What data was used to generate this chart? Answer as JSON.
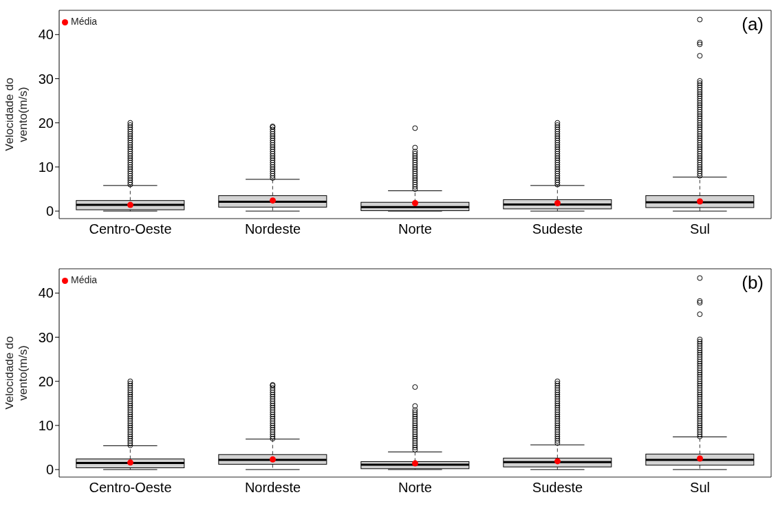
{
  "chart_data": [
    {
      "type": "box",
      "title": "(a)",
      "ylabel": "Velocidade do vento(m/s)",
      "categories": [
        "Centro-Oeste",
        "Nordeste",
        "Norte",
        "Sudeste",
        "Sul"
      ],
      "color": "#d3d3d3",
      "ylim": [
        -1.7,
        45.5
      ],
      "yticks": [
        0,
        10,
        20,
        30,
        40
      ],
      "legend": "top left",
      "boxes": [
        {
          "low": 0,
          "q1": 0.3,
          "median": 1.4,
          "q3": 2.4,
          "high": 5.8,
          "outliers": [
            6,
            6.5,
            7,
            7.5,
            8,
            8.5,
            9,
            9.5,
            10,
            10.5,
            11,
            11.5,
            12,
            12.5,
            13,
            13.5,
            14,
            14.5,
            15,
            15.5,
            16,
            16.5,
            17,
            17.5,
            18,
            18.5,
            19,
            19.5,
            20
          ]
        },
        {
          "low": 0,
          "q1": 0.9,
          "median": 2.1,
          "q3": 3.5,
          "high": 7.2,
          "outliers": [
            7.5,
            8,
            8.5,
            9,
            9.5,
            10,
            10.5,
            11,
            11.5,
            12,
            12.5,
            13,
            13.5,
            14,
            14.5,
            15,
            15.5,
            16,
            16.5,
            17,
            17.5,
            18,
            18.5,
            19,
            19.2
          ]
        },
        {
          "low": 0,
          "q1": 0.1,
          "median": 0.9,
          "q3": 2.0,
          "high": 4.6,
          "outliers": [
            5,
            5.5,
            6,
            6.5,
            7,
            7.5,
            8,
            8.5,
            9,
            9.5,
            10,
            10.5,
            11,
            11.5,
            12,
            12.5,
            13,
            13.5,
            14.4,
            18.8
          ]
        },
        {
          "low": 0,
          "q1": 0.5,
          "median": 1.5,
          "q3": 2.6,
          "high": 5.8,
          "outliers": [
            6,
            6.5,
            7,
            7.5,
            8,
            8.5,
            9,
            9.5,
            10,
            10.5,
            11,
            11.5,
            12,
            12.5,
            13,
            13.5,
            14,
            14.5,
            15,
            15.5,
            16,
            16.5,
            17,
            17.5,
            18,
            18.5,
            19,
            19.5,
            20
          ]
        },
        {
          "low": 0,
          "q1": 0.8,
          "median": 2.0,
          "q3": 3.5,
          "high": 7.7,
          "outliers": [
            8,
            8.5,
            9,
            9.5,
            10,
            10.5,
            11,
            11.5,
            12,
            12.5,
            13,
            13.5,
            14,
            14.5,
            15,
            15.5,
            16,
            16.5,
            17,
            17.5,
            18,
            18.5,
            19,
            19.5,
            20,
            20.5,
            21,
            21.5,
            22,
            22.5,
            23,
            23.5,
            24,
            24.5,
            25,
            25.5,
            26,
            26.5,
            27,
            27.5,
            28,
            28.5,
            29,
            29.5,
            35.2,
            37.8,
            38.2,
            43.4
          ]
        }
      ],
      "series": [
        {
          "name": "Média",
          "type": "scatter",
          "color": "#ff0000",
          "x": [
            "Centro-Oeste",
            "Nordeste",
            "Norte",
            "Sudeste",
            "Sul"
          ],
          "values": [
            1.4,
            2.4,
            1.8,
            1.8,
            2.2
          ]
        }
      ]
    },
    {
      "type": "box",
      "title": "(b)",
      "ylabel": "Velocidade do vento(m/s)",
      "categories": [
        "Centro-Oeste",
        "Nordeste",
        "Norte",
        "Sudeste",
        "Sul"
      ],
      "color": "#d3d3d3",
      "ylim": [
        -1.7,
        45.5
      ],
      "yticks": [
        0,
        10,
        20,
        30,
        40
      ],
      "legend": "top left",
      "boxes": [
        {
          "low": 0,
          "q1": 0.4,
          "median": 1.5,
          "q3": 2.4,
          "high": 5.4,
          "outliers": [
            5.5,
            6,
            6.5,
            7,
            7.5,
            8,
            8.5,
            9,
            9.5,
            10,
            10.5,
            11,
            11.5,
            12,
            12.5,
            13,
            13.5,
            14,
            14.5,
            15,
            15.5,
            16,
            16.5,
            17,
            17.5,
            18,
            18.5,
            19,
            19.5,
            20
          ]
        },
        {
          "low": 0,
          "q1": 1.2,
          "median": 2.2,
          "q3": 3.4,
          "high": 6.9,
          "outliers": [
            7,
            7.5,
            8,
            8.5,
            9,
            9.5,
            10,
            10.5,
            11,
            11.5,
            12,
            12.5,
            13,
            13.5,
            14,
            14.5,
            15,
            15.5,
            16,
            16.5,
            17,
            17.5,
            18,
            18.5,
            19,
            19.2
          ]
        },
        {
          "low": 0,
          "q1": 0.2,
          "median": 1.1,
          "q3": 1.8,
          "high": 4.0,
          "outliers": [
            4.5,
            5,
            5.5,
            6,
            6.5,
            7,
            7.5,
            8,
            8.5,
            9,
            9.5,
            10,
            10.5,
            11,
            11.5,
            12,
            12.5,
            13,
            13.5,
            14.4,
            18.7
          ]
        },
        {
          "low": 0,
          "q1": 0.6,
          "median": 1.7,
          "q3": 2.6,
          "high": 5.6,
          "outliers": [
            6,
            6.5,
            7,
            7.5,
            8,
            8.5,
            9,
            9.5,
            10,
            10.5,
            11,
            11.5,
            12,
            12.5,
            13,
            13.5,
            14,
            14.5,
            15,
            15.5,
            16,
            16.5,
            17,
            17.5,
            18,
            18.5,
            19,
            19.5,
            20
          ]
        },
        {
          "low": 0,
          "q1": 1.0,
          "median": 2.2,
          "q3": 3.5,
          "high": 7.4,
          "outliers": [
            7.5,
            8,
            8.5,
            9,
            9.5,
            10,
            10.5,
            11,
            11.5,
            12,
            12.5,
            13,
            13.5,
            14,
            14.5,
            15,
            15.5,
            16,
            16.5,
            17,
            17.5,
            18,
            18.5,
            19,
            19.5,
            20,
            20.5,
            21,
            21.5,
            22,
            22.5,
            23,
            23.5,
            24,
            24.5,
            25,
            25.5,
            26,
            26.5,
            27,
            27.5,
            28,
            28.5,
            29,
            29.5,
            35.2,
            37.8,
            38.2,
            43.4
          ]
        }
      ],
      "series": [
        {
          "name": "Média",
          "type": "scatter",
          "color": "#ff0000",
          "x": [
            "Centro-Oeste",
            "Nordeste",
            "Norte",
            "Sudeste",
            "Sul"
          ],
          "values": [
            1.6,
            2.3,
            1.4,
            1.9,
            2.5
          ]
        }
      ]
    }
  ]
}
